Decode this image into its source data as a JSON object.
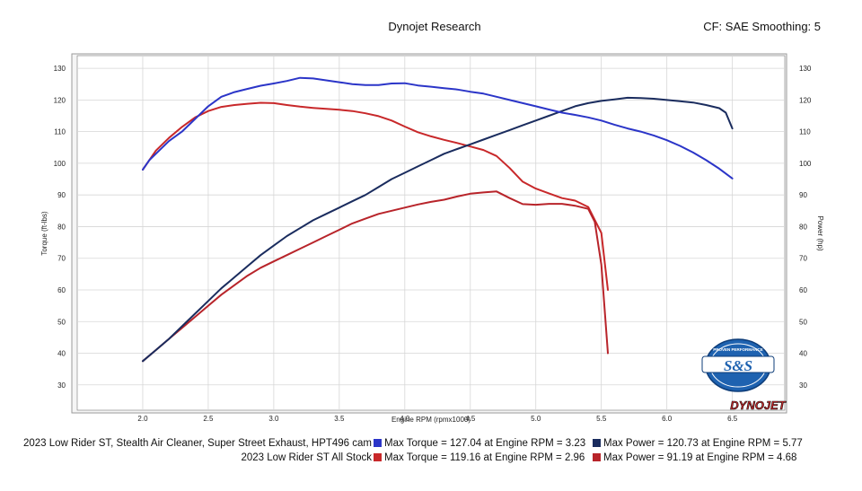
{
  "header": {
    "title": "Dynojet Research",
    "correction": "CF: SAE Smoothing: 5"
  },
  "chart_data": {
    "type": "line",
    "xlabel": "Engine RPM (rpmx1000)",
    "ylabel_left": "Torque (ft-lbs)",
    "ylabel_right": "Power (hp)",
    "xlim": [
      1.5,
      6.9
    ],
    "ylim": [
      22,
      134
    ],
    "x_ticks": [
      "2.0",
      "2.5",
      "3.0",
      "3.5",
      "4.0",
      "4.5",
      "5.0",
      "5.5",
      "6.0",
      "6.5"
    ],
    "y_ticks": [
      "30",
      "40",
      "50",
      "60",
      "70",
      "80",
      "90",
      "100",
      "110",
      "120",
      "130"
    ],
    "grid": true,
    "series": [
      {
        "name": "Max Torque = 127.04 at Engine RPM = 3.23",
        "measure": "torque",
        "color": "#2b35c8",
        "x": [
          2.0,
          2.05,
          2.1,
          2.2,
          2.3,
          2.4,
          2.5,
          2.6,
          2.7,
          2.8,
          2.9,
          3.0,
          3.1,
          3.2,
          3.3,
          3.4,
          3.5,
          3.6,
          3.7,
          3.8,
          3.9,
          4.0,
          4.1,
          4.2,
          4.3,
          4.4,
          4.5,
          4.6,
          4.7,
          4.8,
          4.9,
          5.0,
          5.1,
          5.2,
          5.3,
          5.4,
          5.5,
          5.6,
          5.7,
          5.8,
          5.9,
          6.0,
          6.1,
          6.2,
          6.3,
          6.4,
          6.5
        ],
        "y": [
          98,
          101,
          103,
          107,
          110,
          114,
          118,
          121,
          122.5,
          123.5,
          124.5,
          125.2,
          126,
          127,
          126.8,
          126.2,
          125.6,
          125,
          124.7,
          124.7,
          125.2,
          125.3,
          124.6,
          124.2,
          123.7,
          123.3,
          122.6,
          122,
          121,
          120,
          119,
          118,
          117,
          116,
          115.3,
          114.5,
          113.5,
          112.2,
          111,
          110,
          108.8,
          107.3,
          105.5,
          103.4,
          101,
          98.3,
          95.2
        ]
      },
      {
        "name": "Max Power = 120.73 at Engine RPM = 5.77",
        "measure": "power",
        "color": "#1a2c5e",
        "x": [
          2.0,
          2.1,
          2.2,
          2.3,
          2.4,
          2.5,
          2.6,
          2.7,
          2.8,
          2.9,
          3.0,
          3.1,
          3.2,
          3.3,
          3.4,
          3.5,
          3.6,
          3.7,
          3.8,
          3.9,
          4.0,
          4.1,
          4.2,
          4.3,
          4.4,
          4.5,
          4.6,
          4.7,
          4.8,
          4.9,
          5.0,
          5.1,
          5.2,
          5.3,
          5.4,
          5.5,
          5.6,
          5.7,
          5.8,
          5.9,
          6.0,
          6.1,
          6.2,
          6.3,
          6.4,
          6.45,
          6.5
        ],
        "y": [
          37.5,
          41,
          44.5,
          48.5,
          52.5,
          56.5,
          60.5,
          64,
          67.5,
          71,
          74,
          77,
          79.5,
          82,
          84,
          86,
          88,
          90,
          92.5,
          95,
          97,
          99,
          101,
          103,
          104.5,
          106,
          107.5,
          109,
          110.5,
          112,
          113.5,
          115,
          116.5,
          118,
          119,
          119.7,
          120.2,
          120.7,
          120.6,
          120.4,
          120,
          119.6,
          119.2,
          118.4,
          117.4,
          116,
          111
        ]
      },
      {
        "name": "Max Torque = 119.16 at Engine RPM = 2.96",
        "measure": "torque",
        "color": "#c8282a",
        "x": [
          2.0,
          2.05,
          2.1,
          2.2,
          2.3,
          2.4,
          2.5,
          2.6,
          2.7,
          2.8,
          2.9,
          3.0,
          3.1,
          3.2,
          3.3,
          3.4,
          3.5,
          3.6,
          3.7,
          3.8,
          3.9,
          4.0,
          4.1,
          4.2,
          4.3,
          4.4,
          4.5,
          4.6,
          4.7,
          4.8,
          4.9,
          5.0,
          5.1,
          5.2,
          5.3,
          5.4,
          5.5,
          5.55
        ],
        "y": [
          98,
          101,
          104,
          108,
          111.5,
          114.5,
          116.5,
          117.8,
          118.4,
          118.8,
          119.1,
          119,
          118.4,
          117.9,
          117.5,
          117.2,
          116.9,
          116.5,
          115.8,
          114.9,
          113.5,
          111.6,
          109.8,
          108.5,
          107.4,
          106.4,
          105.3,
          104.2,
          102.3,
          98.5,
          94.2,
          92,
          90.5,
          89,
          88.2,
          86.2,
          78,
          60
        ]
      },
      {
        "name": "Max Power = 91.19 at Engine RPM = 4.68",
        "measure": "power",
        "color": "#b8242a",
        "x": [
          2.0,
          2.1,
          2.2,
          2.3,
          2.4,
          2.5,
          2.6,
          2.7,
          2.8,
          2.9,
          3.0,
          3.1,
          3.2,
          3.3,
          3.4,
          3.5,
          3.6,
          3.7,
          3.8,
          3.9,
          4.0,
          4.1,
          4.2,
          4.3,
          4.4,
          4.5,
          4.6,
          4.7,
          4.8,
          4.9,
          5.0,
          5.1,
          5.2,
          5.3,
          5.4,
          5.45,
          5.5,
          5.55
        ],
        "y": [
          37.5,
          41,
          44.5,
          48,
          51.5,
          55,
          58.5,
          61.5,
          64.5,
          67,
          69,
          71,
          73,
          75,
          77,
          79,
          81,
          82.5,
          84,
          85,
          86,
          87,
          87.8,
          88.5,
          89.5,
          90.4,
          90.8,
          91.1,
          89,
          87.1,
          86.9,
          87.2,
          87.2,
          86.6,
          85.6,
          81.5,
          68,
          40
        ]
      }
    ],
    "legend": {
      "placement": "bottom",
      "runs": [
        {
          "label": "2023 Low Rider ST, Stealth Air Cleaner, Super Street Exhaust, HPT496 cam",
          "series": [
            0,
            1
          ]
        },
        {
          "label": "2023 Low Rider ST All Stock",
          "series": [
            2,
            3
          ]
        }
      ]
    }
  },
  "logos": {
    "ss": {
      "text": "S&S",
      "ring_text": "PROVEN PERFORMANCE",
      "color": "#1e62b0"
    },
    "dynojet": {
      "text": "DYNOJET"
    }
  }
}
